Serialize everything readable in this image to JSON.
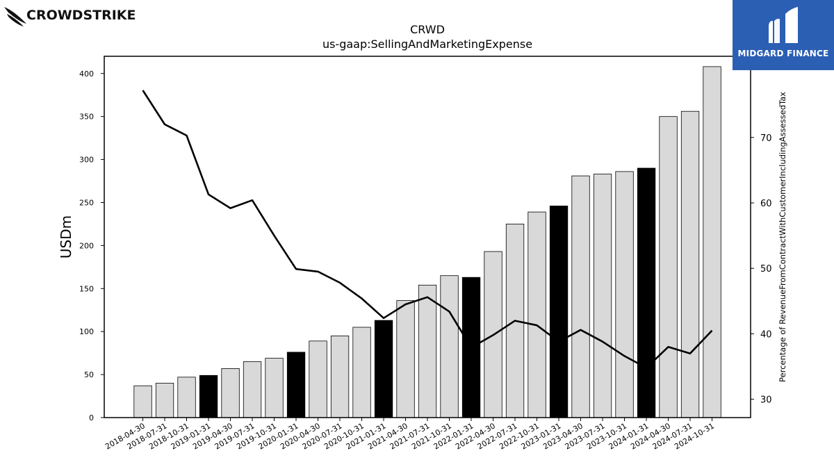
{
  "header": {
    "left_logo_text": "CROWDSTRIKE",
    "right_logo_text": "MIDGARD FINANCE",
    "right_logo_icon": "midgard-m-icon",
    "left_logo_icon": "falcon-icon"
  },
  "chart_data": {
    "type": "bar",
    "title": "CRWD",
    "subtitle": "us-gaap:SellingAndMarketingExpense",
    "ylabel": "USDm",
    "y2label": "Percentage of RevenueFromContractWithCustomerIncludingAssessedTax",
    "ylim": [
      0,
      420
    ],
    "y2lim": [
      27.2,
      82.4
    ],
    "yticks": [
      0,
      50,
      100,
      150,
      200,
      250,
      300,
      350,
      400
    ],
    "y2ticks": [
      30,
      40,
      50,
      60,
      70
    ],
    "categories": [
      "2018-04-30",
      "2018-07-31",
      "2018-10-31",
      "2019-01-31",
      "2019-04-30",
      "2019-07-31",
      "2019-10-31",
      "2020-01-31",
      "2020-04-30",
      "2020-07-31",
      "2020-10-31",
      "2021-01-31",
      "2021-04-30",
      "2021-07-31",
      "2021-10-31",
      "2022-01-31",
      "2022-04-30",
      "2022-07-31",
      "2022-10-31",
      "2023-01-31",
      "2023-04-30",
      "2023-07-31",
      "2023-10-31",
      "2024-01-31",
      "2024-04-30",
      "2024-07-31",
      "2024-10-31"
    ],
    "highlight_color": "#000000",
    "bar_color": "#d9d9d9",
    "line_color": "#000000",
    "series": [
      {
        "axis": "left",
        "kind": "bar",
        "values": [
          37,
          40,
          47,
          49,
          57,
          65,
          69,
          76,
          89,
          95,
          105,
          113,
          136,
          154,
          165,
          163,
          193,
          225,
          239,
          246,
          281,
          283,
          286,
          290,
          350,
          356,
          408
        ],
        "highlight": [
          false,
          false,
          false,
          true,
          false,
          false,
          false,
          true,
          false,
          false,
          false,
          true,
          false,
          false,
          false,
          true,
          false,
          false,
          false,
          true,
          false,
          false,
          false,
          true,
          false,
          false,
          false
        ]
      },
      {
        "axis": "right",
        "kind": "line",
        "values": [
          77.2,
          72.0,
          70.3,
          61.3,
          59.2,
          60.4,
          55.0,
          49.9,
          49.5,
          47.8,
          45.4,
          42.4,
          44.5,
          45.6,
          43.4,
          37.9,
          39.8,
          42.0,
          41.3,
          38.8,
          40.6,
          38.8,
          36.6,
          34.8,
          38.0,
          37.0,
          40.5
        ]
      }
    ]
  }
}
